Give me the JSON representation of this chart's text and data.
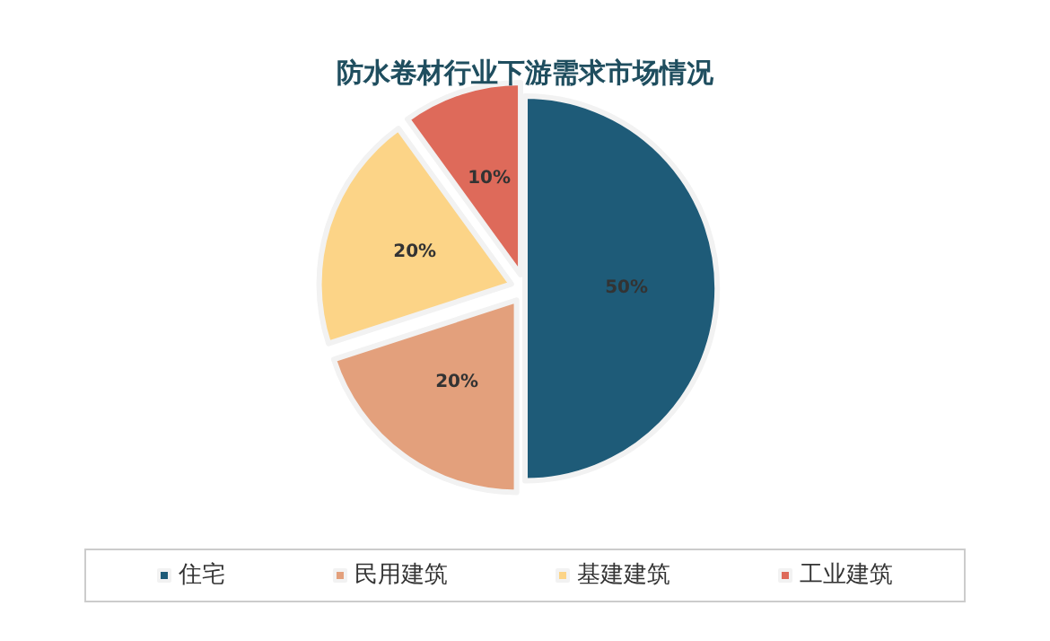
{
  "chart_data": {
    "type": "pie",
    "title": "防水卷材行业下游需求市场情况",
    "categories": [
      "住宅",
      "民用建筑",
      "基建建筑",
      "工业建筑"
    ],
    "values": [
      50,
      20,
      20,
      10
    ],
    "colors": [
      "#1e5b78",
      "#e3a07c",
      "#fcd487",
      "#de6a5a"
    ],
    "value_labels": [
      "50%",
      "20%",
      "20%",
      "10%"
    ],
    "legend": "bottom"
  }
}
